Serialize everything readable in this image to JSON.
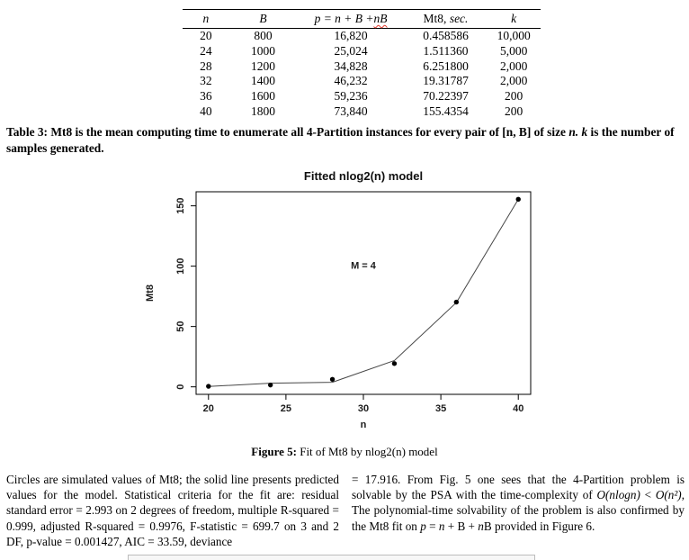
{
  "table": {
    "header_parts": {
      "n": [
        {
          "t": "n",
          "i": true
        }
      ],
      "B": [
        {
          "t": "B",
          "i": true
        }
      ],
      "p": [
        {
          "t": "p = n + B +",
          "i": true
        },
        {
          "t": "nB",
          "i": true,
          "u": true
        }
      ],
      "mt8": [
        {
          "t": "Mt8, "
        },
        {
          "t": "sec.",
          "i": true
        }
      ],
      "k": [
        {
          "t": "k",
          "i": true
        }
      ]
    },
    "rows": [
      [
        "20",
        "800",
        "16,820",
        "0.458586",
        "10,000"
      ],
      [
        "24",
        "1000",
        "25,024",
        "1.511360",
        "5,000"
      ],
      [
        "28",
        "1200",
        "34,828",
        "6.251800",
        "2,000"
      ],
      [
        "32",
        "1400",
        "46,232",
        "19.31787",
        "2,000"
      ],
      [
        "36",
        "1600",
        "59,236",
        "70.22397",
        "200"
      ],
      [
        "40",
        "1800",
        "73,840",
        "155.4354",
        "200"
      ]
    ],
    "caption_parts": [
      {
        "t": "Table 3: Mt8 is the mean computing time to enumerate all 4-Partition instances for every pair of [n, B] of size "
      },
      {
        "t": "n. k",
        "i": true
      },
      {
        "t": " is the number of samples generated."
      }
    ]
  },
  "chart_data": {
    "type": "line",
    "title": "Fitted nlog2(n) model",
    "xlabel": "n",
    "ylabel": "Mt8",
    "annotation": {
      "text": "M = 4",
      "x": 30,
      "y": 98
    },
    "x": [
      20,
      24,
      28,
      32,
      36,
      40
    ],
    "series": [
      {
        "name": "simulated Mt8 values (circles)",
        "style": "points",
        "values": [
          0.458586,
          1.51136,
          6.2518,
          19.31787,
          70.22397,
          155.4354
        ]
      },
      {
        "name": "fitted nlog2(n) model (solid line)",
        "style": "line",
        "values": [
          0.3,
          3.0,
          3.8,
          21.8,
          69.8,
          155.4
        ]
      }
    ],
    "xlim": [
      20,
      40
    ],
    "ylim": [
      0,
      155.4354
    ],
    "xticks": [
      20,
      25,
      30,
      35,
      40
    ],
    "yticks": [
      0,
      50,
      100,
      150
    ],
    "grid": false,
    "legend": "none"
  },
  "figure": {
    "caption_parts": [
      {
        "t": "Figure 5:",
        "b": true
      },
      {
        "t": " Fit of Mt8 by nlog2(n) model"
      }
    ]
  },
  "body": {
    "left_column": "Circles are simulated values of Mt8; the solid line presents predicted values for the model. Statistical criteria for the fit are: residual standard error = 2.993 on 2 degrees of freedom, multiple R-squared = 0.999, adjusted R-squared = 0.9976, F-statistic = 699.7 on 3 and 2 DF, p-value = 0.001427, AIC = 33.59, deviance",
    "right_column_parts": [
      {
        "t": "= 17.916. From Fig. 5 one sees that the 4-Partition problem is solvable by the PSA with the time-complexity of "
      },
      {
        "t": "O(nlogn)",
        "i": true
      },
      {
        "t": " < "
      },
      {
        "t": "O(n²)",
        "i": true
      },
      {
        "t": ", The polynomial-time solvability of the problem is also confirmed by the Mt8 fit on "
      },
      {
        "t": "p",
        "i": true
      },
      {
        "t": " = "
      },
      {
        "t": "n",
        "i": true
      },
      {
        "t": " + B + "
      },
      {
        "t": "n",
        "i": true
      },
      {
        "t": "B provided in Figure 6."
      }
    ]
  }
}
